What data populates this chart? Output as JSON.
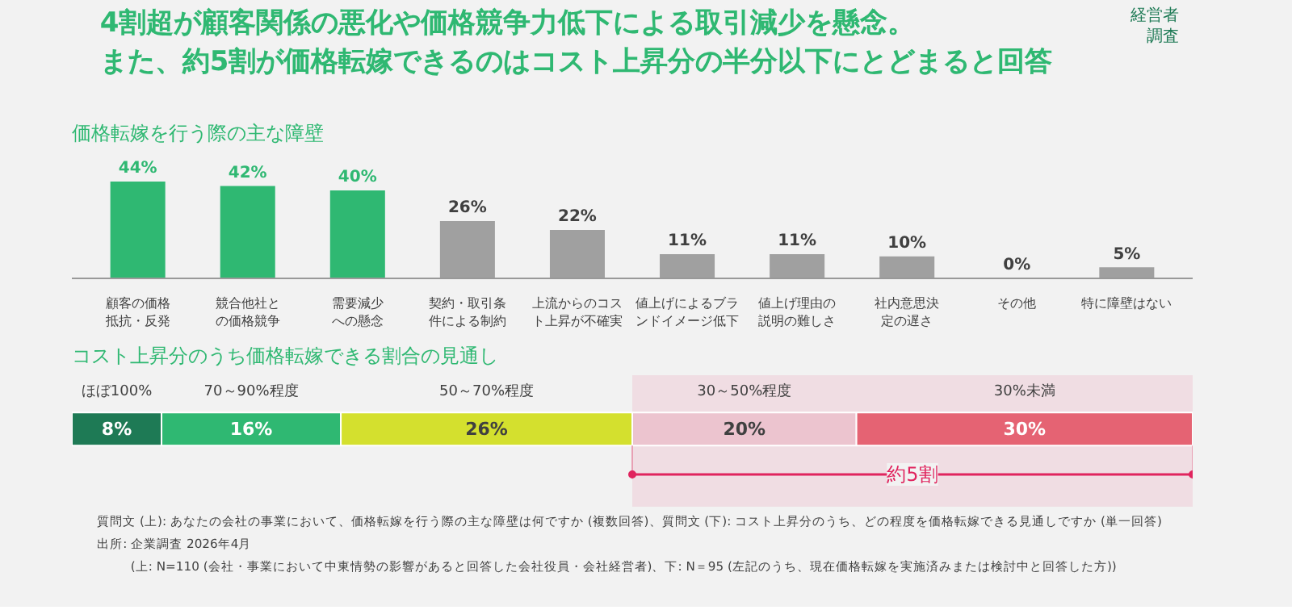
{
  "chart_data": [
    {
      "type": "bar",
      "title": "4割超が顧客関係の悪化や価格競争力低下による取引減少を懸念。また、約5割が価格転嫁できるのはコスト上昇分の半分以下にとどまると回答",
      "subtitle": "価格転嫁を行う際の主な障壁",
      "categories": [
        "顧客の価格抵抗・反発",
        "競合他社との価格競争",
        "需要減少への懸念",
        "契約・取引条件による制約",
        "上流からのコスト上昇が不確実",
        "値上げによるブランドイメージ低下",
        "値上げ理由の説明の難しさ",
        "社内意思決定の遅さ",
        "その他",
        "特に障壁はない"
      ],
      "values": [
        44,
        42,
        40,
        26,
        22,
        11,
        11,
        10,
        0,
        5
      ],
      "value_labels": [
        "44%",
        "42%",
        "40%",
        "26%",
        "22%",
        "11%",
        "11%",
        "10%",
        "0%",
        "5%"
      ],
      "colors": [
        "#2fb872",
        "#2fb872",
        "#2fb872",
        "#a0a0a0",
        "#a0a0a0",
        "#a0a0a0",
        "#a0a0a0",
        "#a0a0a0",
        "#a0a0a0",
        "#a0a0a0"
      ],
      "annotations": [
        "経営者調査"
      ]
    },
    {
      "type": "bar",
      "orientation": "horizontal",
      "stacked": true,
      "title": "コスト上昇分のうち価格転嫁できる割合の見通し",
      "categories": [
        null
      ],
      "series": [
        {
          "name": "ほぼ100%",
          "color": "#1e7a55",
          "values": [
            8
          ],
          "value_labels": [
            "8%"
          ]
        },
        {
          "name": "70～90%程度",
          "color": "#2fb872",
          "values": [
            16
          ],
          "value_labels": [
            "16%"
          ]
        },
        {
          "name": "50～70%程度",
          "color": "#d4e02e",
          "values": [
            26
          ],
          "value_labels": [
            "26%"
          ]
        },
        {
          "name": "30～50%程度",
          "color": "#ecc4cf",
          "values": [
            20
          ],
          "value_labels": [
            "20%"
          ]
        },
        {
          "name": "30%未満",
          "color": "#e56373",
          "values": [
            30
          ],
          "value_labels": [
            "30%"
          ]
        }
      ],
      "bands": [
        {
          "axis": "x",
          "from": 50,
          "to": 100,
          "label": "約5割",
          "color": "#e0245e"
        }
      ],
      "annotations": [
        "質問文 (上): あなたの会社の事業において、価格転嫁を行う際の主な障壁は何ですか (複数回答)、質問文 (下): コスト上昇分のうち、どの程度を価格転嫁できる見通しですか (単一回答)",
        "出所: 企業調査 2026年4月",
        "(上: N=110 (会社・事業において中東情勢の影響があると回答した会社役員・会社経営者)、下: N＝95 (左記のうち、現在価格転嫁を実施済みまたは検討中と回答した方))"
      ]
    }
  ]
}
